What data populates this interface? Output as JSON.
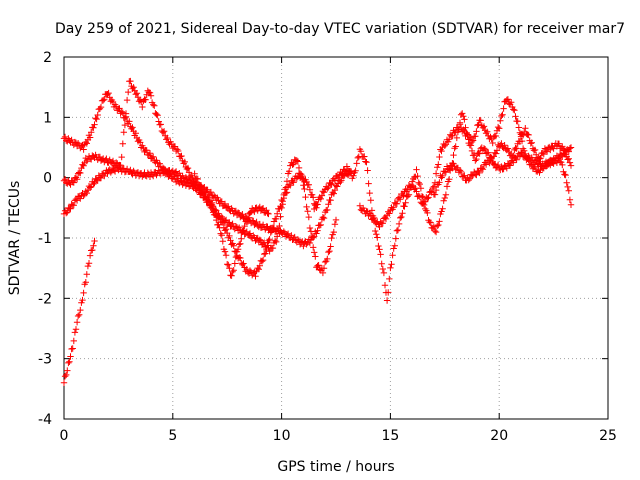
{
  "chart_data": {
    "type": "scatter",
    "title": "Day 259 of 2021, Sidereal Day-to-day VTEC variation (SDTVAR) for receiver mar7",
    "xlabel": "GPS time / hours",
    "ylabel": "SDTVAR / TECUs",
    "xlim": [
      0,
      25
    ],
    "ylim": [
      -4,
      2
    ],
    "xticks": [
      0,
      5,
      10,
      15,
      20,
      25
    ],
    "yticks": [
      -4,
      -3,
      -2,
      -1,
      0,
      1,
      2
    ],
    "grid": true,
    "marker": "plus",
    "color": "#ff0000",
    "series": [
      {
        "name": "trace1",
        "points": [
          [
            0,
            -3.4
          ],
          [
            0.2,
            -3.1
          ],
          [
            0.4,
            -2.8
          ],
          [
            0.6,
            -2.4
          ],
          [
            0.8,
            -2.1
          ],
          [
            1.0,
            -1.7
          ],
          [
            1.2,
            -1.3
          ],
          [
            1.4,
            -1.05
          ]
        ]
      },
      {
        "name": "trace2",
        "points": [
          [
            0,
            -0.6
          ],
          [
            0.3,
            -0.5
          ],
          [
            0.6,
            -0.35
          ],
          [
            1.0,
            -0.25
          ],
          [
            1.3,
            -0.1
          ],
          [
            1.6,
            0.0
          ],
          [
            2.0,
            0.1
          ],
          [
            2.5,
            0.15
          ],
          [
            3.0,
            0.1
          ],
          [
            3.5,
            0.05
          ],
          [
            4.0,
            0.05
          ],
          [
            4.5,
            0.1
          ],
          [
            5.0,
            0.1
          ],
          [
            5.5,
            0.0
          ],
          [
            6.0,
            -0.1
          ],
          [
            6.5,
            -0.2
          ],
          [
            7.0,
            -0.35
          ],
          [
            7.5,
            -0.5
          ],
          [
            8.0,
            -0.6
          ],
          [
            8.5,
            -0.7
          ],
          [
            9.0,
            -0.8
          ],
          [
            9.5,
            -0.85
          ],
          [
            10.0,
            -0.9
          ],
          [
            10.5,
            -1.0
          ],
          [
            11.0,
            -1.1
          ],
          [
            11.3,
            -1.05
          ],
          [
            11.6,
            -0.9
          ],
          [
            12.0,
            -0.6
          ],
          [
            12.3,
            -0.3
          ],
          [
            12.6,
            -0.1
          ],
          [
            12.9,
            0.05
          ],
          [
            13.2,
            0.1
          ]
        ]
      },
      {
        "name": "trace3",
        "points": [
          [
            0,
            0.65
          ],
          [
            0.3,
            0.6
          ],
          [
            0.6,
            0.55
          ],
          [
            0.9,
            0.5
          ],
          [
            1.2,
            0.7
          ],
          [
            1.5,
            1.0
          ],
          [
            1.8,
            1.3
          ],
          [
            2.0,
            1.4
          ],
          [
            2.3,
            1.2
          ],
          [
            2.6,
            1.1
          ],
          [
            3.0,
            0.9
          ],
          [
            3.3,
            0.7
          ],
          [
            3.6,
            0.5
          ],
          [
            4.0,
            0.35
          ],
          [
            4.4,
            0.2
          ],
          [
            4.8,
            0.05
          ],
          [
            5.2,
            -0.05
          ],
          [
            5.6,
            -0.1
          ],
          [
            6.0,
            -0.15
          ],
          [
            6.4,
            -0.3
          ],
          [
            6.8,
            -0.5
          ],
          [
            7.2,
            -0.9
          ],
          [
            7.5,
            -1.4
          ],
          [
            7.7,
            -1.65
          ],
          [
            8.0,
            -1.2
          ],
          [
            8.3,
            -0.8
          ],
          [
            8.6,
            -0.55
          ],
          [
            9.0,
            -0.5
          ],
          [
            9.4,
            -0.6
          ]
        ]
      },
      {
        "name": "trace4",
        "points": [
          [
            0,
            -0.05
          ],
          [
            0.3,
            -0.1
          ],
          [
            0.6,
            0.0
          ],
          [
            1.0,
            0.3
          ],
          [
            1.4,
            0.35
          ],
          [
            1.8,
            0.3
          ],
          [
            2.2,
            0.25
          ],
          [
            2.6,
            0.2
          ],
          [
            3.0,
            1.6
          ],
          [
            3.3,
            1.4
          ],
          [
            3.6,
            1.2
          ],
          [
            3.9,
            1.45
          ],
          [
            4.2,
            1.1
          ],
          [
            4.5,
            0.8
          ],
          [
            4.8,
            0.6
          ],
          [
            5.2,
            0.45
          ],
          [
            5.6,
            0.2
          ],
          [
            6.0,
            -0.1
          ],
          [
            6.4,
            -0.3
          ],
          [
            6.8,
            -0.45
          ],
          [
            7.2,
            -0.7
          ],
          [
            7.6,
            -1.0
          ],
          [
            8.0,
            -1.3
          ],
          [
            8.4,
            -1.55
          ],
          [
            8.8,
            -1.6
          ],
          [
            9.2,
            -1.3
          ],
          [
            9.6,
            -0.8
          ],
          [
            10.0,
            -0.4
          ],
          [
            10.4,
            -0.1
          ],
          [
            10.8,
            0.05
          ],
          [
            11.2,
            -0.1
          ],
          [
            11.6,
            -0.5
          ]
        ]
      },
      {
        "name": "trace5",
        "points": [
          [
            6.0,
            0.05
          ],
          [
            6.5,
            -0.3
          ],
          [
            7.0,
            -0.6
          ],
          [
            7.5,
            -0.75
          ],
          [
            8.0,
            -0.85
          ],
          [
            8.5,
            -0.95
          ],
          [
            9.0,
            -1.05
          ],
          [
            9.5,
            -1.2
          ],
          [
            9.8,
            -1.0
          ],
          [
            10.1,
            -0.3
          ],
          [
            10.4,
            0.2
          ],
          [
            10.7,
            0.3
          ],
          [
            11.0,
            -0.1
          ],
          [
            11.3,
            -0.8
          ],
          [
            11.6,
            -1.45
          ],
          [
            11.9,
            -1.55
          ],
          [
            12.2,
            -1.2
          ],
          [
            12.5,
            -0.7
          ]
        ]
      },
      {
        "name": "trace6",
        "points": [
          [
            11.5,
            -0.5
          ],
          [
            12.0,
            -0.2
          ],
          [
            12.5,
            0.0
          ],
          [
            13.0,
            0.15
          ],
          [
            13.3,
            0.0
          ],
          [
            13.6,
            0.45
          ],
          [
            13.9,
            0.25
          ],
          [
            14.1,
            -0.4
          ],
          [
            14.3,
            -0.85
          ],
          [
            14.5,
            -1.2
          ],
          [
            14.7,
            -1.6
          ],
          [
            14.85,
            -2.05
          ],
          [
            15.0,
            -1.5
          ],
          [
            15.3,
            -0.9
          ],
          [
            15.6,
            -0.5
          ],
          [
            15.9,
            -0.2
          ],
          [
            16.2,
            0.1
          ],
          [
            16.5,
            -0.35
          ],
          [
            16.8,
            -0.75
          ],
          [
            17.1,
            -0.9
          ],
          [
            17.4,
            -0.5
          ],
          [
            17.7,
            0.0
          ],
          [
            18.0,
            0.55
          ],
          [
            18.3,
            1.1
          ],
          [
            18.6,
            0.6
          ],
          [
            18.9,
            0.3
          ],
          [
            19.2,
            0.5
          ],
          [
            19.5,
            0.4
          ],
          [
            19.8,
            0.2
          ],
          [
            20.1,
            0.15
          ],
          [
            20.4,
            0.2
          ],
          [
            20.7,
            0.3
          ],
          [
            21.0,
            0.4
          ],
          [
            21.5,
            0.3
          ],
          [
            22.0,
            0.2
          ],
          [
            22.5,
            0.3
          ],
          [
            23.0,
            0.4
          ],
          [
            23.3,
            0.5
          ]
        ]
      },
      {
        "name": "trace7",
        "points": [
          [
            13.6,
            -0.5
          ],
          [
            14.0,
            -0.6
          ],
          [
            14.5,
            -0.8
          ],
          [
            15.0,
            -0.55
          ],
          [
            15.5,
            -0.3
          ],
          [
            16.0,
            -0.1
          ],
          [
            16.5,
            -0.45
          ],
          [
            17.0,
            -0.15
          ],
          [
            17.3,
            0.45
          ],
          [
            17.6,
            0.6
          ],
          [
            17.9,
            0.75
          ],
          [
            18.2,
            0.85
          ],
          [
            18.5,
            0.7
          ],
          [
            18.8,
            0.6
          ],
          [
            19.1,
            0.95
          ],
          [
            19.4,
            0.75
          ],
          [
            19.7,
            0.6
          ],
          [
            20.0,
            0.85
          ],
          [
            20.3,
            1.3
          ],
          [
            20.6,
            1.2
          ],
          [
            20.9,
            0.85
          ],
          [
            21.2,
            0.35
          ],
          [
            21.5,
            0.2
          ],
          [
            21.8,
            0.1
          ],
          [
            22.1,
            0.2
          ],
          [
            22.4,
            0.25
          ],
          [
            22.8,
            0.3
          ],
          [
            23.1,
            -0.05
          ],
          [
            23.3,
            -0.45
          ]
        ]
      },
      {
        "name": "trace8",
        "points": [
          [
            17.0,
            -0.3
          ],
          [
            17.3,
            0.0
          ],
          [
            17.6,
            0.15
          ],
          [
            17.9,
            0.2
          ],
          [
            18.2,
            0.1
          ],
          [
            18.5,
            -0.05
          ],
          [
            18.8,
            0.05
          ],
          [
            19.1,
            0.1
          ],
          [
            19.4,
            0.25
          ],
          [
            19.7,
            0.3
          ],
          [
            20.0,
            0.55
          ],
          [
            20.3,
            0.5
          ],
          [
            20.6,
            0.35
          ],
          [
            20.9,
            0.6
          ],
          [
            21.2,
            0.8
          ],
          [
            21.5,
            0.55
          ],
          [
            21.8,
            0.3
          ],
          [
            22.1,
            0.45
          ],
          [
            22.4,
            0.5
          ],
          [
            22.7,
            0.55
          ],
          [
            23.0,
            0.45
          ],
          [
            23.3,
            0.2
          ]
        ]
      }
    ]
  }
}
